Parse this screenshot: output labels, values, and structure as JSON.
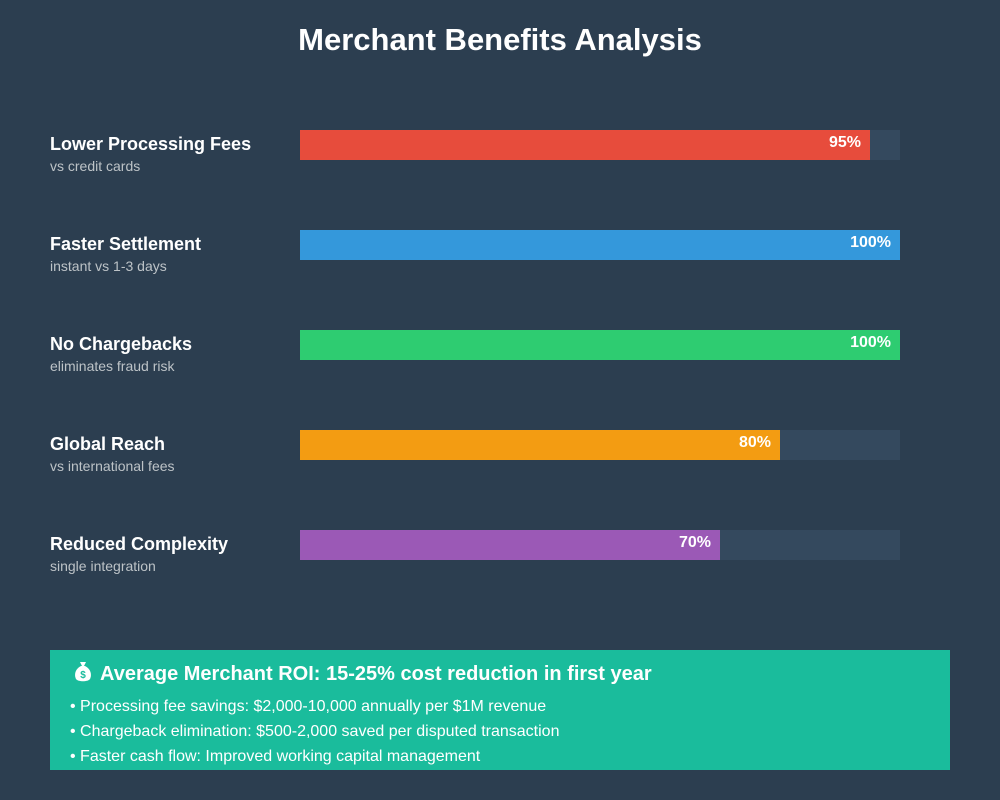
{
  "title": "Merchant Benefits Analysis",
  "chart_data": {
    "type": "bar",
    "orientation": "horizontal",
    "xlim": [
      0,
      100
    ],
    "unit": "%",
    "categories": [
      "Lower Processing Fees",
      "Faster Settlement",
      "No Chargebacks",
      "Global Reach",
      "Reduced Complexity"
    ],
    "subtitles": [
      "vs credit cards",
      "instant vs 1-3 days",
      "eliminates fraud risk",
      "vs international fees",
      "single integration"
    ],
    "values": [
      95,
      100,
      100,
      80,
      70
    ],
    "value_labels": [
      "95%",
      "100%",
      "100%",
      "80%",
      "70%"
    ],
    "colors": [
      "#e74c3c",
      "#3498db",
      "#2ecc71",
      "#f39c12",
      "#9b59b6"
    ]
  },
  "roi": {
    "title": "Average Merchant ROI: 15-25% cost reduction in first year",
    "icon": "money-bag-icon",
    "items": [
      "• Processing fee savings: $2,000-10,000 annually per $1M revenue",
      "• Chargeback elimination: $500-2,000 saved per disputed transaction",
      "• Faster cash flow: Improved working capital management"
    ]
  },
  "colors": {
    "background": "#2c3e50",
    "track": "#34495e",
    "roi_box": "#1abc9c",
    "subtitle_text": "#bdc3c7"
  }
}
